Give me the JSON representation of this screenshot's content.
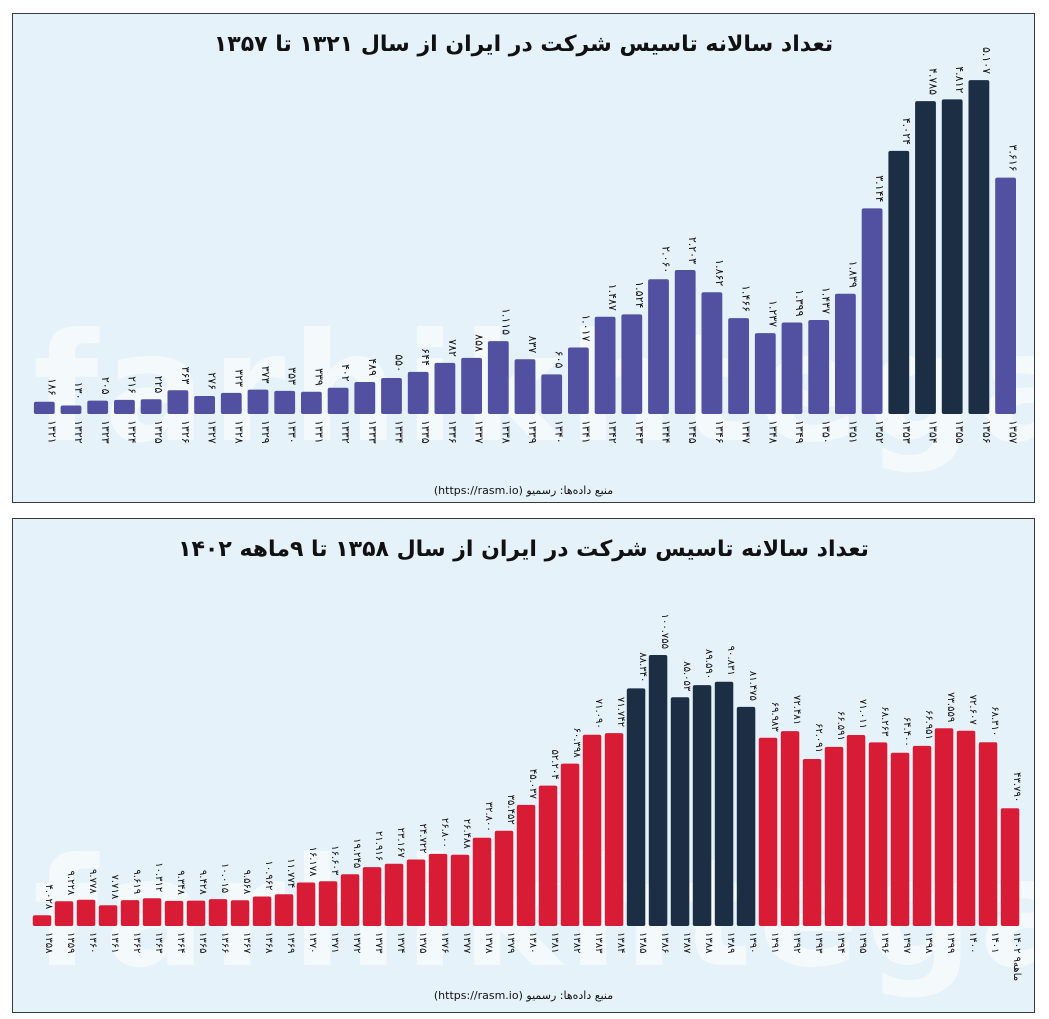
{
  "charts": {
    "top": {
      "title": "تعداد سالانه تاسیس شرکت در ایران از سال ۱۳۲۱ تا ۱۳۵۷",
      "source": "منبع داده‌ها: رسمیو (https://rasm.io)"
    },
    "bottom": {
      "title": "تعداد سالانه تاسیس شرکت در ایران از سال ۱۳۵۸ تا ۹ماهه ۱۴۰۲",
      "source": "منبع داده‌ها: رسمیو (https://rasm.io)"
    }
  },
  "watermark": "farhikhtegan",
  "colors": {
    "top_bar": "#5250a0",
    "top_highlight": "#1b2e44",
    "bottom_bar": "#d91c35",
    "bottom_highlight": "#1b2e44",
    "panel_bg": "#e6f2f9"
  },
  "chart_data": [
    {
      "type": "bar",
      "title": "تعداد سالانه تاسیس شرکت در ایران از سال ۱۳۲۱ تا ۱۳۵۷",
      "xlabel": "",
      "ylabel": "",
      "ylim": [
        0,
        5200
      ],
      "grid": false,
      "categories": [
        "۱۳۲۱",
        "۱۳۲۲",
        "۱۳۲۳",
        "۱۳۲۴",
        "۱۳۲۵",
        "۱۳۲۶",
        "۱۳۲۷",
        "۱۳۲۸",
        "۱۳۲۹",
        "۱۳۳۰",
        "۱۳۳۱",
        "۱۳۳۲",
        "۱۳۳۳",
        "۱۳۳۴",
        "۱۳۳۵",
        "۱۳۳۶",
        "۱۳۳۷",
        "۱۳۳۸",
        "۱۳۳۹",
        "۱۳۴۰",
        "۱۳۴۱",
        "۱۳۴۲",
        "۱۳۴۳",
        "۱۳۴۴",
        "۱۳۴۵",
        "۱۳۴۶",
        "۱۳۴۷",
        "۱۳۴۸",
        "۱۳۴۹",
        "۱۳۵۰",
        "۱۳۵۱",
        "۱۳۵۲",
        "۱۳۵۳",
        "۱۳۵۴",
        "۱۳۵۵",
        "۱۳۵۶",
        "۱۳۵۷"
      ],
      "values": [
        186,
        130,
        205,
        216,
        225,
        363,
        276,
        323,
        373,
        353,
        339,
        402,
        489,
        550,
        644,
        782,
        858,
        1115,
        837,
        605,
        1017,
        1487,
        1524,
        2060,
        2203,
        1862,
        1466,
        1237,
        1399,
        1437,
        1839,
        3144,
        4024,
        4785,
        4812,
        5107,
        3616
      ],
      "labels": [
        "۱۸۶",
        "۱۳۰",
        "۲۰۵",
        "۲۱۶",
        "۲۲۵",
        "۳۶۳",
        "۲۷۶",
        "۳۲۳",
        "۳۷۳",
        "۳۵۳",
        "۳۳۹",
        "۴۰۲",
        "۴۸۹",
        "۵۵۰",
        "۶۴۴",
        "۷۸۲",
        "۸۵۸",
        "۱.۱۱۵",
        "۸۳۷",
        "۶۰۵",
        "۱.۰۱۷",
        "۱.۴۸۷",
        "۱.۵۲۴",
        "۲.۰۶۰",
        "۲.۲۰۳",
        "۱.۸۶۲",
        "۱.۴۶۶",
        "۱.۲۳۷",
        "۱.۳۹۹",
        "۱.۴۳۷",
        "۱.۸۳۹",
        "۳.۱۴۴",
        "۴.۰۲۴",
        "۴.۷۸۵",
        "۴.۸۱۲",
        "۵.۱۰۷",
        "۳.۶۱۶"
      ],
      "highlighted": [
        32,
        33,
        34,
        35
      ]
    },
    {
      "type": "bar",
      "title": "تعداد سالانه تاسیس شرکت در ایران از سال ۱۳۵۸ تا ۹ماهه ۱۴۰۲",
      "xlabel": "",
      "ylabel": "",
      "ylim": [
        0,
        103000
      ],
      "grid": false,
      "categories": [
        "۱۳۵۸",
        "۱۳۵۹",
        "۱۳۶۰",
        "۱۳۶۱",
        "۱۳۶۲",
        "۱۳۶۳",
        "۱۳۶۴",
        "۱۳۶۵",
        "۱۳۶۶",
        "۱۳۶۷",
        "۱۳۶۸",
        "۱۳۶۹",
        "۱۳۷۰",
        "۱۳۷۱",
        "۱۳۷۲",
        "۱۳۷۳",
        "۱۳۷۴",
        "۱۳۷۵",
        "۱۳۷۶",
        "۱۳۷۷",
        "۱۳۷۸",
        "۱۳۷۹",
        "۱۳۸۰",
        "۱۳۸۱",
        "۱۳۸۲",
        "۱۳۸۳",
        "۱۳۸۴",
        "۱۳۸۵",
        "۱۳۸۶",
        "۱۳۸۷",
        "۱۳۸۸",
        "۱۳۸۹",
        "۱۳۹۰",
        "۱۳۹۱",
        "۱۳۹۲",
        "۱۳۹۳",
        "۱۳۹۴",
        "۱۳۹۵",
        "۱۳۹۶",
        "۱۳۹۷",
        "۱۳۹۸",
        "۱۳۹۹",
        "۱۴۰۰",
        "۱۴۰۱",
        "۱۴۰۲ ۹ماهه"
      ],
      "values": [
        4028,
        9228,
        9778,
        7718,
        9619,
        10312,
        9348,
        9428,
        10015,
        9568,
        10962,
        11774,
        16178,
        16603,
        19245,
        21916,
        23167,
        24722,
        26800,
        26488,
        32800,
        35452,
        45037,
        52204,
        60398,
        71090,
        71742,
        88340,
        100755,
        85053,
        89590,
        90831,
        81475,
        69983,
        72481,
        62091,
        66591,
        71011,
        68263,
        64400,
        66951,
        73559,
        72607,
        68310,
        43790
      ],
      "labels": [
        "۴.۰۲۸",
        "۹.۲۲۸",
        "۹.۷۷۸",
        "۷.۷۱۸",
        "۹.۶۱۹",
        "۱۰.۳۱۲",
        "۹.۳۴۸",
        "۹.۴۲۸",
        "۱۰.۰۱۵",
        "۹.۵۶۸",
        "۱۰.۹۶۲",
        "۱۱.۷۷۴",
        "۱۶.۱۷۸",
        "۱۶.۶۰۳",
        "۱۹.۲۴۵",
        "۲۱.۹۱۶",
        "۲۳.۱۶۷",
        "۲۴.۷۲۲",
        "۲۶.۸۰۰",
        "۲۶.۴۸۸",
        "۳۲.۸۰۰",
        "۳۵.۴۵۲",
        "۴۵.۰۳۷",
        "۵۲.۲۰۴",
        "۶۰.۳۹۸",
        "۷۱.۰۹۰",
        "۷۱.۷۴۲",
        "۸۸.۳۴۰",
        "۱۰۰.۷۵۵",
        "۸۵.۰۵۳",
        "۸۹.۵۹۰",
        "۹۰.۸۳۱",
        "۸۱.۴۷۵",
        "۶۹.۹۸۳",
        "۷۲.۴۸۱",
        "۶۲.۰۹۱",
        "۶۶.۵۹۱",
        "۷۱.۰۱۱",
        "۶۸.۲۶۳",
        "۶۴.۴۰۰",
        "۶۶.۹۵۱",
        "۷۳.۵۵۹",
        "۷۲.۶۰۷",
        "۶۸.۳۱۰",
        "۴۳.۷۹۰"
      ],
      "highlighted": [
        27,
        28,
        29,
        30,
        31,
        32
      ]
    }
  ]
}
